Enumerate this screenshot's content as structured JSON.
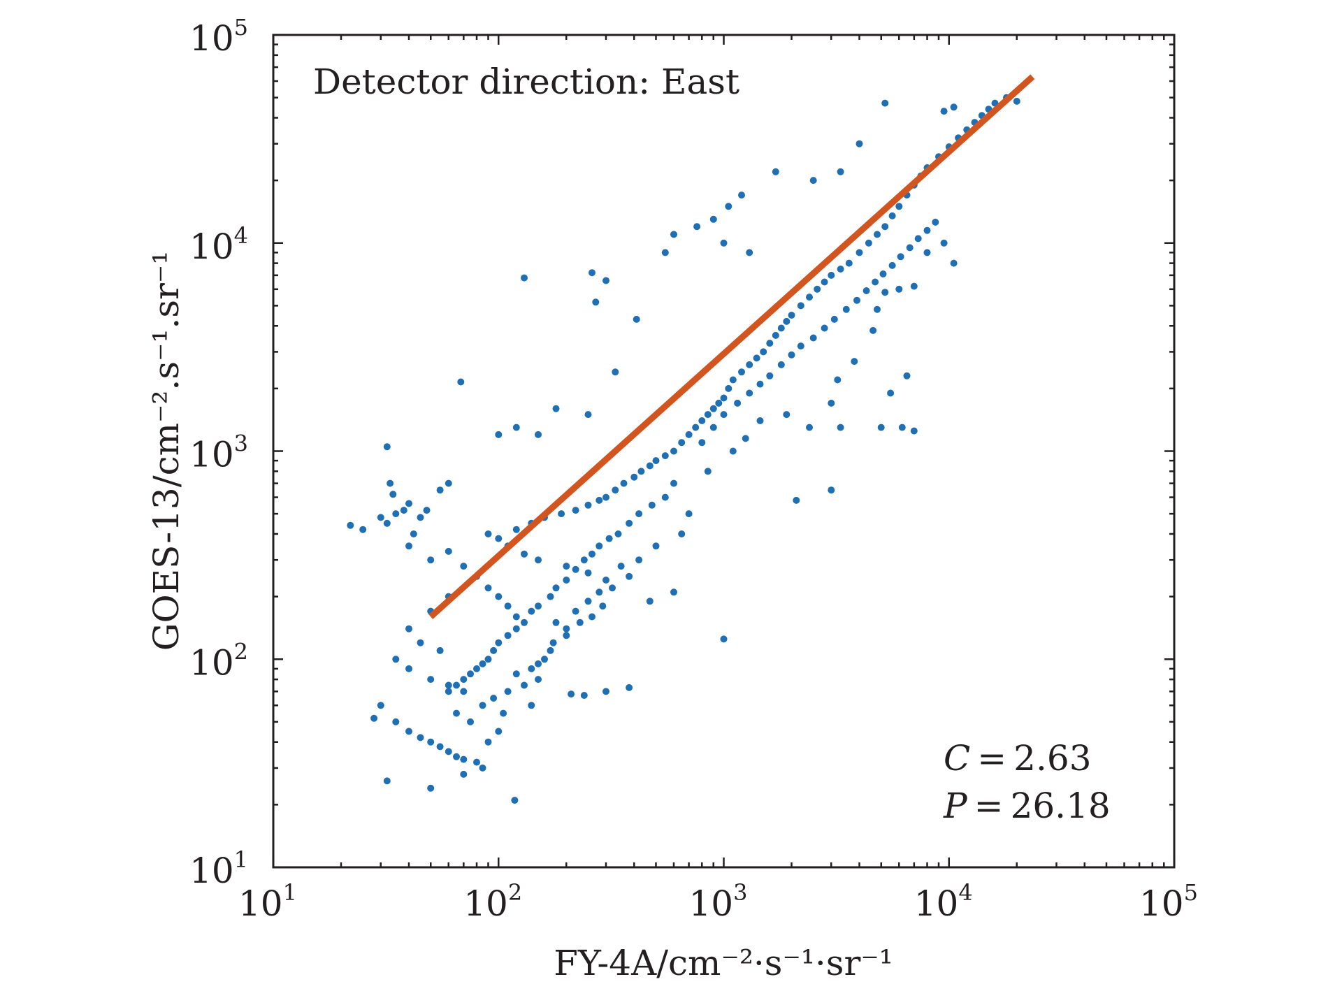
{
  "chart_data": {
    "type": "scatter",
    "title": "",
    "annotation_title": "Detector direction: East",
    "xlabel": "FY-4A/cm⁻²·s⁻¹·sr⁻¹",
    "ylabel": "GOES-13/cm⁻².s⁻¹.sr⁻¹",
    "xscale": "log",
    "yscale": "log",
    "xlim": [
      10,
      100000
    ],
    "ylim": [
      10,
      100000
    ],
    "xticks": [
      {
        "base": "10",
        "exp": "1"
      },
      {
        "base": "10",
        "exp": "2"
      },
      {
        "base": "10",
        "exp": "3"
      },
      {
        "base": "10",
        "exp": "4"
      },
      {
        "base": "10",
        "exp": "5"
      }
    ],
    "yticks": [
      {
        "base": "10",
        "exp": "1"
      },
      {
        "base": "10",
        "exp": "2"
      },
      {
        "base": "10",
        "exp": "3"
      },
      {
        "base": "10",
        "exp": "4"
      },
      {
        "base": "10",
        "exp": "5"
      }
    ],
    "grid": false,
    "stats": [
      {
        "symbol": "C",
        "relation": "=",
        "value": "2.63"
      },
      {
        "symbol": "P",
        "relation": "=",
        "value": "26.18"
      }
    ],
    "series": [
      {
        "name": "observations",
        "kind": "scatter",
        "color": "#1f6fb4",
        "points": [
          [
            22,
            440
          ],
          [
            25,
            420
          ],
          [
            30,
            480
          ],
          [
            32,
            450
          ],
          [
            35,
            500
          ],
          [
            38,
            520
          ],
          [
            40,
            560
          ],
          [
            34,
            620
          ],
          [
            33,
            700
          ],
          [
            32,
            1050
          ],
          [
            68,
            2150
          ],
          [
            130,
            6800
          ],
          [
            260,
            7200
          ],
          [
            300,
            6600
          ],
          [
            270,
            5200
          ],
          [
            410,
            4300
          ],
          [
            330,
            2400
          ],
          [
            250,
            1500
          ],
          [
            180,
            1600
          ],
          [
            150,
            1200
          ],
          [
            120,
            1300
          ],
          [
            100,
            1200
          ],
          [
            60,
            700
          ],
          [
            55,
            650
          ],
          [
            48,
            520
          ],
          [
            45,
            480
          ],
          [
            42,
            400
          ],
          [
            40,
            350
          ],
          [
            50,
            300
          ],
          [
            60,
            330
          ],
          [
            70,
            280
          ],
          [
            80,
            250
          ],
          [
            90,
            220
          ],
          [
            100,
            200
          ],
          [
            110,
            180
          ],
          [
            120,
            160
          ],
          [
            60,
            200
          ],
          [
            50,
            170
          ],
          [
            40,
            140
          ],
          [
            45,
            120
          ],
          [
            55,
            110
          ],
          [
            35,
            100
          ],
          [
            40,
            90
          ],
          [
            50,
            80
          ],
          [
            60,
            75
          ],
          [
            70,
            70
          ],
          [
            30,
            60
          ],
          [
            28,
            52
          ],
          [
            35,
            50
          ],
          [
            40,
            45
          ],
          [
            45,
            42
          ],
          [
            50,
            40
          ],
          [
            55,
            38
          ],
          [
            60,
            36
          ],
          [
            65,
            34
          ],
          [
            70,
            33
          ],
          [
            80,
            32
          ],
          [
            85,
            30
          ],
          [
            90,
            40
          ],
          [
            100,
            45
          ],
          [
            75,
            50
          ],
          [
            65,
            55
          ],
          [
            85,
            60
          ],
          [
            95,
            65
          ],
          [
            110,
            70
          ],
          [
            130,
            75
          ],
          [
            150,
            80
          ],
          [
            120,
            85
          ],
          [
            32,
            26
          ],
          [
            50,
            24
          ],
          [
            118,
            21
          ],
          [
            70,
            28
          ],
          [
            105,
            55
          ],
          [
            140,
            60
          ],
          [
            210,
            68
          ],
          [
            240,
            67
          ],
          [
            300,
            70
          ],
          [
            380,
            73
          ],
          [
            150,
            95
          ],
          [
            170,
            110
          ],
          [
            200,
            130
          ],
          [
            180,
            150
          ],
          [
            220,
            170
          ],
          [
            250,
            190
          ],
          [
            280,
            210
          ],
          [
            300,
            240
          ],
          [
            250,
            260
          ],
          [
            200,
            280
          ],
          [
            150,
            300
          ],
          [
            130,
            320
          ],
          [
            110,
            350
          ],
          [
            100,
            380
          ],
          [
            90,
            400
          ],
          [
            120,
            420
          ],
          [
            140,
            450
          ],
          [
            160,
            480
          ],
          [
            190,
            500
          ],
          [
            220,
            520
          ],
          [
            250,
            550
          ],
          [
            280,
            580
          ],
          [
            300,
            600
          ],
          [
            330,
            650
          ],
          [
            360,
            700
          ],
          [
            400,
            750
          ],
          [
            430,
            800
          ],
          [
            470,
            850
          ],
          [
            500,
            900
          ],
          [
            550,
            950
          ],
          [
            600,
            1000
          ],
          [
            650,
            1100
          ],
          [
            700,
            1200
          ],
          [
            750,
            1300
          ],
          [
            800,
            1400
          ],
          [
            850,
            1500
          ],
          [
            900,
            1600
          ],
          [
            950,
            1700
          ],
          [
            1000,
            1800
          ],
          [
            1050,
            2000
          ],
          [
            1100,
            2200
          ],
          [
            1200,
            2400
          ],
          [
            1300,
            2600
          ],
          [
            1400,
            2800
          ],
          [
            1500,
            3000
          ],
          [
            1600,
            3300
          ],
          [
            1700,
            3600
          ],
          [
            1800,
            3900
          ],
          [
            1900,
            4200
          ],
          [
            2000,
            4500
          ],
          [
            2200,
            5000
          ],
          [
            2400,
            5500
          ],
          [
            2600,
            6000
          ],
          [
            2800,
            6500
          ],
          [
            3000,
            7000
          ],
          [
            3300,
            7500
          ],
          [
            3600,
            8000
          ],
          [
            4000,
            9000
          ],
          [
            4400,
            10000
          ],
          [
            4800,
            11000
          ],
          [
            5200,
            12000
          ],
          [
            5600,
            13500
          ],
          [
            6000,
            15000
          ],
          [
            6500,
            17000
          ],
          [
            7000,
            19000
          ],
          [
            7500,
            21000
          ],
          [
            8000,
            23000
          ],
          [
            9000,
            26000
          ],
          [
            10000,
            29000
          ],
          [
            11000,
            32000
          ],
          [
            12000,
            35000
          ],
          [
            13000,
            38000
          ],
          [
            14000,
            41000
          ],
          [
            15000,
            44000
          ],
          [
            16000,
            47000
          ],
          [
            18000,
            50000
          ],
          [
            20000,
            48000
          ],
          [
            10500,
            45000
          ],
          [
            9500,
            43000
          ],
          [
            5200,
            47000
          ],
          [
            4000,
            30000
          ],
          [
            3300,
            22000
          ],
          [
            2500,
            20000
          ],
          [
            1700,
            22000
          ],
          [
            1200,
            17000
          ],
          [
            1050,
            15000
          ],
          [
            900,
            13000
          ],
          [
            760,
            12000
          ],
          [
            600,
            11000
          ],
          [
            550,
            9000
          ],
          [
            1000,
            10000
          ],
          [
            1300,
            9000
          ],
          [
            8000,
            9000
          ],
          [
            7000,
            6200
          ],
          [
            9500,
            10000
          ],
          [
            10500,
            8000
          ],
          [
            6000,
            6000
          ],
          [
            5200,
            5800
          ],
          [
            4800,
            4800
          ],
          [
            4600,
            3800
          ],
          [
            3800,
            2700
          ],
          [
            3200,
            2200
          ],
          [
            6500,
            2300
          ],
          [
            5500,
            1900
          ],
          [
            3000,
            1700
          ],
          [
            3300,
            1300
          ],
          [
            5000,
            1300
          ],
          [
            6200,
            1300
          ],
          [
            7000,
            1250
          ],
          [
            2100,
            580
          ],
          [
            1000,
            125
          ],
          [
            600,
            210
          ],
          [
            470,
            190
          ],
          [
            3000,
            650
          ],
          [
            2400,
            1300
          ],
          [
            1900,
            1500
          ],
          [
            1450,
            1400
          ],
          [
            1250,
            1150
          ],
          [
            1100,
            1000
          ],
          [
            850,
            800
          ],
          [
            700,
            500
          ],
          [
            650,
            400
          ],
          [
            500,
            350
          ],
          [
            420,
            300
          ],
          [
            380,
            250
          ],
          [
            350,
            280
          ],
          [
            320,
            220
          ],
          [
            290,
            180
          ],
          [
            260,
            160
          ],
          [
            230,
            150
          ],
          [
            200,
            140
          ],
          [
            175,
            120
          ],
          [
            160,
            100
          ],
          [
            140,
            90
          ],
          [
            600,
            700
          ],
          [
            550,
            600
          ],
          [
            480,
            550
          ],
          [
            420,
            500
          ],
          [
            380,
            450
          ],
          [
            340,
            400
          ],
          [
            310,
            380
          ],
          [
            280,
            350
          ],
          [
            260,
            320
          ],
          [
            240,
            300
          ],
          [
            220,
            270
          ],
          [
            200,
            240
          ],
          [
            180,
            220
          ],
          [
            170,
            200
          ],
          [
            150,
            180
          ],
          [
            140,
            170
          ],
          [
            130,
            150
          ],
          [
            120,
            140
          ],
          [
            110,
            130
          ],
          [
            100,
            120
          ],
          [
            95,
            110
          ],
          [
            90,
            100
          ],
          [
            85,
            95
          ],
          [
            80,
            90
          ],
          [
            75,
            85
          ],
          [
            70,
            80
          ],
          [
            65,
            75
          ],
          [
            60,
            70
          ],
          [
            800,
            1100
          ],
          [
            900,
            1300
          ],
          [
            1000,
            1500
          ],
          [
            1150,
            1700
          ],
          [
            1300,
            1900
          ],
          [
            1450,
            2100
          ],
          [
            1600,
            2300
          ],
          [
            1800,
            2600
          ],
          [
            2000,
            2900
          ],
          [
            2200,
            3200
          ],
          [
            2500,
            3500
          ],
          [
            2800,
            3900
          ],
          [
            3100,
            4300
          ],
          [
            3500,
            4800
          ],
          [
            3900,
            5300
          ],
          [
            4300,
            5900
          ],
          [
            4700,
            6500
          ],
          [
            5100,
            7100
          ],
          [
            5600,
            7800
          ],
          [
            6100,
            8600
          ],
          [
            6700,
            9500
          ],
          [
            7300,
            10500
          ],
          [
            8000,
            11500
          ],
          [
            8700,
            12600
          ]
        ]
      },
      {
        "name": "fit",
        "kind": "line",
        "color": "#d2541e",
        "points": [
          [
            50,
            160
          ],
          [
            23500,
            63000
          ]
        ]
      }
    ]
  },
  "colors": {
    "scatter": "#1f6fb4",
    "fit_line": "#d2541e",
    "axes": "#231f20",
    "background": "#ffffff"
  }
}
